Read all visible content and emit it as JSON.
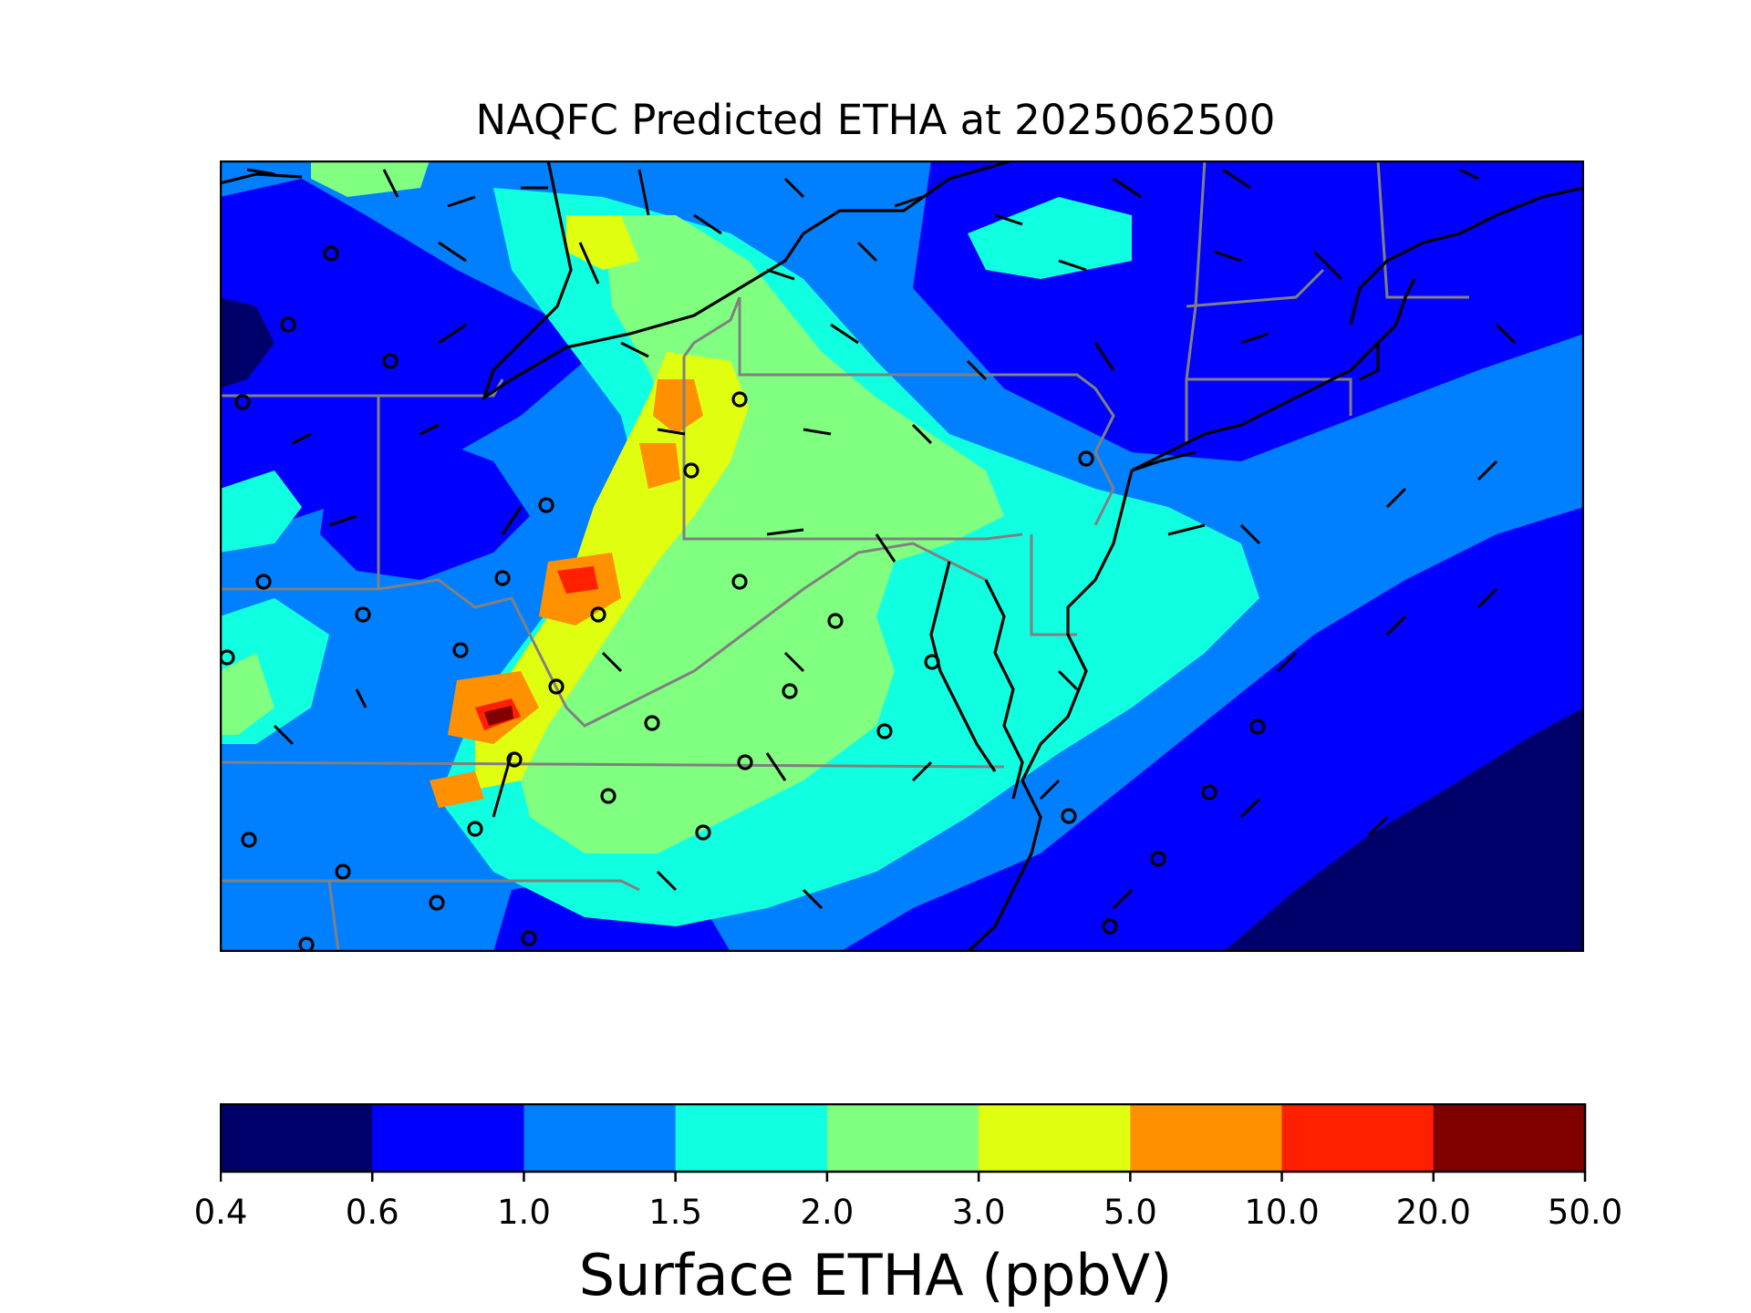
{
  "title": "NAQFC Predicted ETHA at 2025062500",
  "colorbar": {
    "label": "Surface ETHA (ppbV)",
    "ticks": [
      "0.4",
      "0.6",
      "1.0",
      "1.5",
      "2.0",
      "3.0",
      "5.0",
      "10.0",
      "20.0",
      "50.0"
    ],
    "colors": [
      "#00006a",
      "#0000ff",
      "#0080ff",
      "#10ffe0",
      "#80ff80",
      "#e0ff10",
      "#ff9000",
      "#ff2000",
      "#800000"
    ]
  },
  "chart_data": {
    "type": "heatmap",
    "title": "NAQFC Predicted ETHA at 2025062500",
    "variable": "Surface ETHA",
    "units": "ppbV",
    "levels": [
      0.4,
      0.6,
      1.0,
      1.5,
      2.0,
      3.0,
      5.0,
      10.0,
      20.0,
      50.0
    ],
    "overlays": [
      "wind barbs",
      "calm-wind circles",
      "coastlines",
      "state borders"
    ]
  }
}
